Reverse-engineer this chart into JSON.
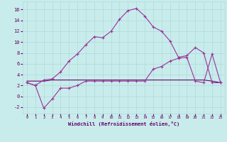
{
  "xlabel": "Windchill (Refroidissement éolien,°C)",
  "bg_color": "#c8ecec",
  "grid_color": "#b0d8d8",
  "line_color": "#993399",
  "line_color2": "#660066",
  "xlim": [
    -0.5,
    23.5
  ],
  "ylim": [
    -3.2,
    17.5
  ],
  "xticks": [
    0,
    1,
    2,
    3,
    4,
    5,
    6,
    7,
    8,
    9,
    10,
    11,
    12,
    13,
    14,
    15,
    16,
    17,
    18,
    19,
    20,
    21,
    22,
    23
  ],
  "yticks": [
    -2,
    0,
    2,
    4,
    6,
    8,
    10,
    12,
    14,
    16
  ],
  "curve1_x": [
    0,
    1,
    2,
    3,
    4,
    5,
    6,
    7,
    8,
    9,
    10,
    11,
    12,
    13,
    14,
    15,
    16,
    17,
    18,
    19,
    20,
    21,
    22,
    23
  ],
  "curve1_y": [
    2.5,
    2.0,
    3.0,
    3.2,
    4.5,
    6.5,
    7.8,
    9.5,
    11.0,
    10.8,
    12.0,
    14.2,
    15.8,
    16.2,
    14.8,
    12.8,
    12.0,
    10.2,
    7.2,
    7.5,
    9.0,
    8.0,
    2.5,
    2.5
  ],
  "curve2_x": [
    0,
    1,
    2,
    3,
    4,
    5,
    6,
    7,
    8,
    9,
    10,
    11,
    12,
    13,
    14,
    15,
    16,
    17,
    18,
    19,
    20,
    21,
    22,
    23
  ],
  "curve2_y": [
    2.5,
    2.0,
    -2.2,
    -0.5,
    1.5,
    1.5,
    2.0,
    2.8,
    2.8,
    2.8,
    2.8,
    2.8,
    2.8,
    2.8,
    2.8,
    5.0,
    5.5,
    6.5,
    7.0,
    7.2,
    2.8,
    2.5,
    7.8,
    2.5
  ],
  "curve3_x": [
    0,
    1,
    2,
    3,
    4,
    5,
    6,
    7,
    8,
    9,
    10,
    11,
    12,
    13,
    14,
    15,
    16,
    17,
    18,
    19,
    20,
    21,
    22,
    23
  ],
  "curve3_y": [
    2.8,
    2.8,
    2.8,
    3.0,
    3.0,
    3.0,
    3.0,
    3.0,
    3.0,
    3.0,
    3.0,
    3.0,
    3.0,
    3.0,
    3.0,
    3.0,
    3.0,
    3.0,
    3.0,
    3.0,
    3.0,
    3.0,
    2.8,
    2.5
  ]
}
